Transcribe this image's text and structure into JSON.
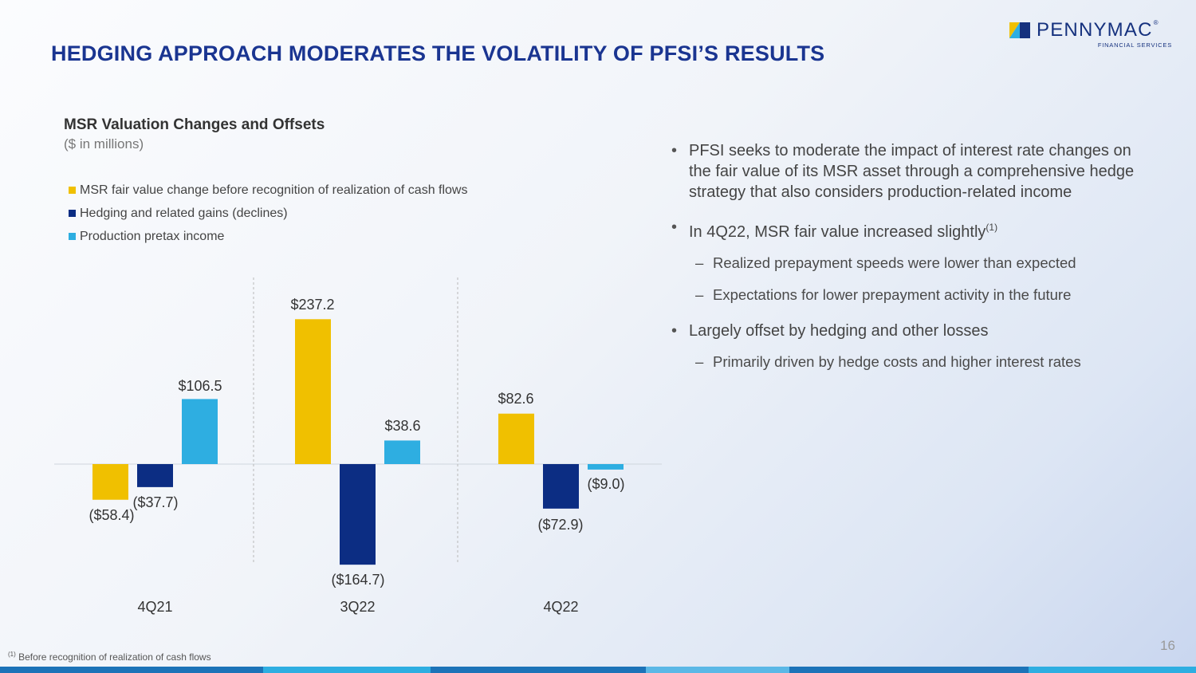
{
  "header": {
    "title": "HEDGING APPROACH MODERATES THE VOLATILITY OF PFSI’S RESULTS",
    "logo_name": "PENNYMAC",
    "logo_reg": "®",
    "logo_sub": "FINANCIAL SERVICES",
    "colors": {
      "title": "#1a3591",
      "logo_yellow": "#f0c000",
      "logo_blue": "#15317e"
    }
  },
  "chart_data": {
    "type": "bar",
    "title": "MSR Valuation Changes and Offsets",
    "subtitle": "($ in millions)",
    "categories": [
      "4Q21",
      "3Q22",
      "4Q22"
    ],
    "series": [
      {
        "name": "MSR fair value change before recognition of realization of cash flows",
        "color": "#f0c000",
        "values": [
          -58.4,
          237.2,
          82.6
        ],
        "labels": [
          "($58.4)",
          "$237.2",
          "$82.6"
        ]
      },
      {
        "name": "Hedging and related gains (declines)",
        "color": "#0c2d83",
        "values": [
          -37.7,
          -164.7,
          -72.9
        ],
        "labels": [
          "($37.7)",
          "($164.7)",
          "($72.9)"
        ]
      },
      {
        "name": "Production pretax income",
        "color": "#2eaee1",
        "values": [
          106.5,
          38.6,
          -9.0
        ],
        "labels": [
          "$106.5",
          "$38.6",
          "($9.0)"
        ]
      }
    ],
    "xlabel": "",
    "ylabel": "",
    "ylim": [
      -175,
      250
    ],
    "grid": false,
    "legend": "top-left"
  },
  "bullets": [
    {
      "text": "PFSI seeks to moderate the impact of interest rate changes on the fair value of its MSR asset through a comprehensive hedge strategy that also considers production-related income",
      "sup": ""
    },
    {
      "text": "In 4Q22, MSR fair value increased slightly",
      "sup": "(1)"
    },
    {
      "sub": "Realized prepayment speeds were lower than expected"
    },
    {
      "sub": "Expectations for lower prepayment activity in the future"
    },
    {
      "text": "Largely offset by hedging and other losses",
      "sup": ""
    },
    {
      "sub": "Primarily driven by hedge costs and higher interest rates"
    }
  ],
  "footnote": {
    "marker": "(1)",
    "text": " Before recognition of realization of cash flows"
  },
  "page_number": "16"
}
